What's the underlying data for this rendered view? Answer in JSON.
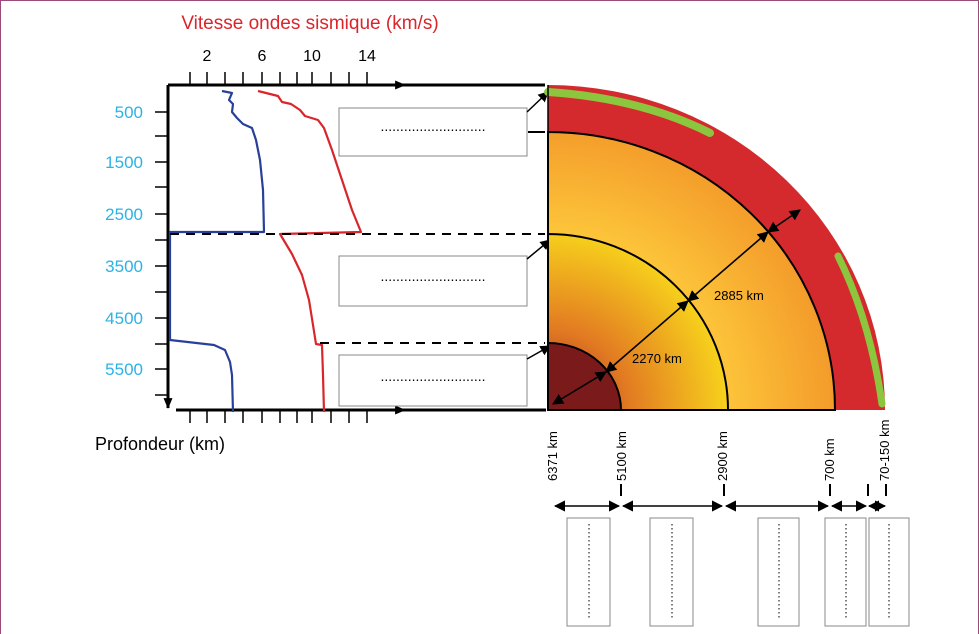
{
  "colors": {
    "frame": "#9b4a7c",
    "velocity_title": "#d9262c",
    "depth_labels": "#2bb3e6",
    "p_wave": "#d9262c",
    "s_wave": "#28409a",
    "crust": "#8cc63f",
    "upper_mantle": "#d42a2e",
    "lower_mantle": "#fbb034",
    "outer_core": "#f2a52a",
    "inner_core": "#7b1a1b"
  },
  "top_axis": {
    "title": "Vitesse ondes sismique (km/s)",
    "ticks": [
      "2",
      "6",
      "10",
      "14"
    ]
  },
  "left_axis": {
    "ticks": [
      "500",
      "1500",
      "2500",
      "3500",
      "4500",
      "5500"
    ],
    "label": "Profondeur (km)"
  },
  "answer_box_dots": "...........................",
  "measures": {
    "outer": "2885 km",
    "inner": "2270 km"
  },
  "radius_labels": [
    "6371 km",
    "5100 km",
    "2900 km",
    "700 km",
    "70-150 km"
  ],
  "icons": {
    "arrow": "arrow-icon",
    "double_arrow": "double-arrow-icon"
  }
}
